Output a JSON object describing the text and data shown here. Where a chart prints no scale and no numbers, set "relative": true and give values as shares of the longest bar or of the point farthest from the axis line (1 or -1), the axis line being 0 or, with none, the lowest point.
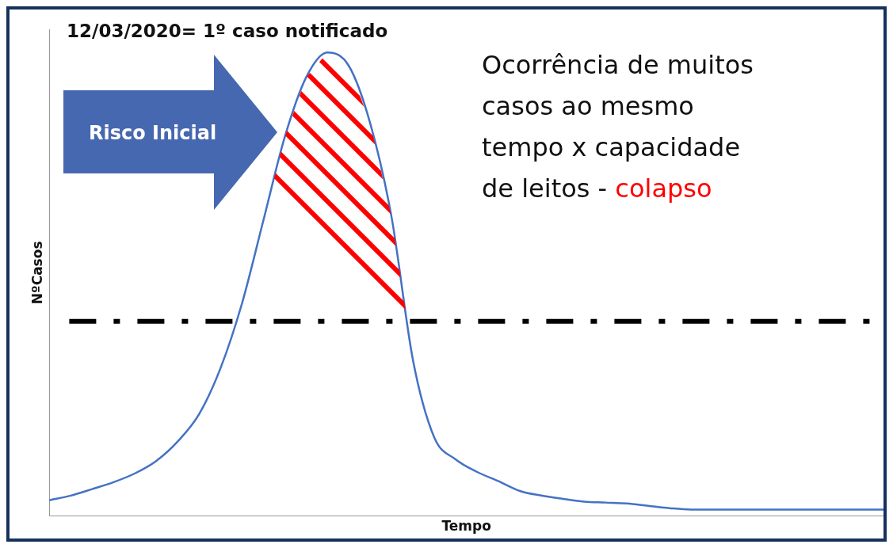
{
  "chart_data": {
    "type": "line",
    "relative": true,
    "xlabel": "Tempo",
    "ylabel": "NºCasos",
    "annotations": [
      "12/03/2020= 1º caso notificado",
      "Risco Inicial",
      "Ocorrência de muitos casos ao mesmo tempo x capacidade de leitos -",
      "colapso"
    ],
    "categories": [
      null,
      null,
      null,
      null,
      null,
      null,
      null,
      null,
      null,
      null,
      null,
      null,
      null,
      null,
      null,
      null,
      null,
      null,
      null,
      null,
      null,
      null,
      null,
      null,
      null,
      null,
      null,
      null,
      null,
      null,
      null,
      null,
      null,
      null,
      null,
      null,
      null,
      null,
      null,
      null
    ],
    "series": [
      {
        "color": "#4472c4",
        "values": [
          0.034,
          0.044,
          0.058,
          0.073,
          0.092,
          0.119,
          0.161,
          0.22,
          0.319,
          0.458,
          0.637,
          0.817,
          0.946,
          1,
          0.971,
          0.847,
          0.644,
          0.336,
          0.169,
          0.122,
          0.095,
          0.075,
          0.054,
          0.044,
          0.037,
          0.031,
          0.029,
          0.027,
          0.022,
          0.017,
          0.014,
          0.014,
          0.014,
          0.014,
          0.014,
          0.014,
          0.014,
          0.014,
          0.014,
          0.014
        ]
      }
    ],
    "ref_lines": [
      {
        "axis": "y",
        "value": 0.42,
        "color": "#000000",
        "line_style": "dashed"
      }
    ],
    "tick_labels": false,
    "grid": false,
    "legend": false,
    "marker": "none",
    "line_style": "solid"
  }
}
